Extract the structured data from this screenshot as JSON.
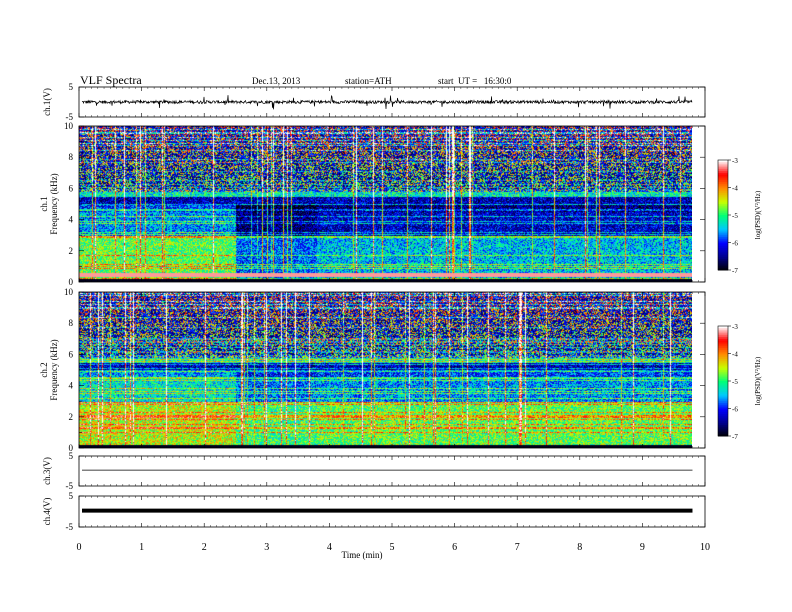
{
  "header": {
    "title": "VLF  Spectra",
    "date": "Dec.13, 2013",
    "station": "station=ATH",
    "start": "start  UT =   16:30:0"
  },
  "colors": {
    "trace": "#000000",
    "colormap": [
      "#000000",
      "#00008c",
      "#0000ff",
      "#00c8ff",
      "#00ff78",
      "#c8ff00",
      "#ff8c00",
      "#ff0000",
      "#ffffff"
    ]
  },
  "chart_data": [
    {
      "id": "ch1-waveform",
      "type": "line",
      "ylabel": "ch.1(V)",
      "ylim": [
        -5,
        5
      ],
      "yticks": [
        "5",
        "-5"
      ],
      "description_values": {
        "baseline": 0,
        "noise_amplitude": 0.5,
        "spike_amplitude": 2.5
      }
    },
    {
      "id": "ch1-spectrogram",
      "type": "heatmap",
      "ylabel": "ch.1\nFrequency (kHz)",
      "ylabel_lines": [
        "ch.1",
        "Frequency (kHz)"
      ],
      "ylim": [
        0,
        10
      ],
      "yticks": [
        "0",
        "2",
        "4",
        "6",
        "8",
        "10"
      ],
      "colorbar": {
        "label": "log(PSD)(V²/Hz)",
        "range": [
          -7,
          -3
        ],
        "ticks": [
          "-3",
          "-4",
          "-5",
          "-6",
          "-7"
        ]
      },
      "data_end_min": 9.8,
      "segments": [
        {
          "from_min": 0,
          "to_min": 2.5,
          "mean_level_low_band": -5.0
        },
        {
          "from_min": 2.5,
          "to_min": 3.8,
          "mean_level_low_band": -6.2
        },
        {
          "from_min": 3.8,
          "to_min": 9.8,
          "mean_level_low_band": -5.8
        }
      ],
      "strong_line_khz": 0.5
    },
    {
      "id": "ch2-spectrogram",
      "type": "heatmap",
      "ylabel_lines": [
        "ch.2",
        "Frequency (kHz)"
      ],
      "ylim": [
        0,
        10
      ],
      "yticks": [
        "0",
        "2",
        "4",
        "6",
        "8",
        "10"
      ],
      "colorbar": {
        "label": "log(PSD)(V²/Hz)",
        "range": [
          -7,
          -3
        ],
        "ticks": [
          "-3",
          "-4",
          "-5",
          "-6",
          "-7"
        ]
      },
      "data_end_min": 9.8,
      "segments": [
        {
          "from_min": 0,
          "to_min": 2.5,
          "mean_level_low_band": -4.6
        },
        {
          "from_min": 2.5,
          "to_min": 3.8,
          "mean_level_low_band": -5.2
        },
        {
          "from_min": 3.8,
          "to_min": 9.8,
          "mean_level_low_band": -5.0
        }
      ]
    },
    {
      "id": "ch3-waveform",
      "type": "line",
      "ylabel": "ch.3(V)",
      "ylim": [
        -5,
        5
      ],
      "yticks": [
        "5",
        "-5"
      ],
      "description_values": {
        "baseline": 0.3
      }
    },
    {
      "id": "ch4-waveform",
      "type": "line",
      "ylabel": "ch.4(V)",
      "ylim": [
        -5,
        5
      ],
      "yticks": [
        "5",
        "-5"
      ],
      "description_values": {
        "baseline": 0.3,
        "thick": true
      }
    }
  ],
  "xaxis": {
    "label": "Time (min)",
    "range": [
      0,
      10
    ],
    "ticks": [
      "0",
      "1",
      "2",
      "3",
      "4",
      "5",
      "6",
      "7",
      "8",
      "9",
      "10"
    ]
  }
}
